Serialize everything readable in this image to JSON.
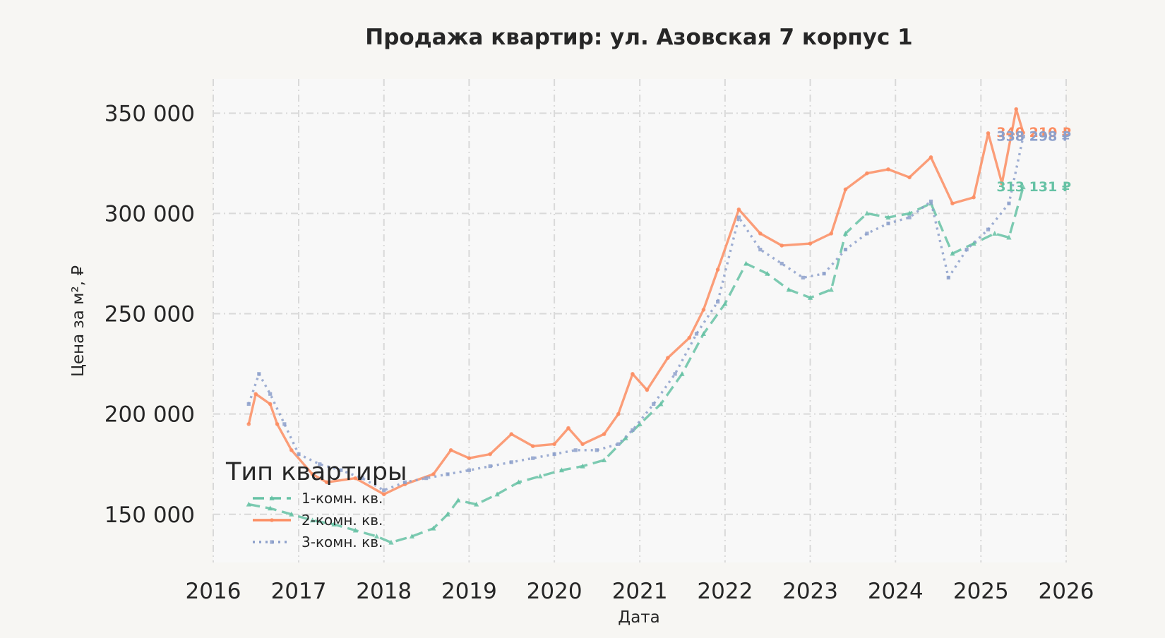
{
  "chart_data": {
    "type": "line",
    "title": "Продажа квартир: ул. Азовская 7 корпус 1",
    "xlabel": "Дата",
    "ylabel": "Цена за м², ₽",
    "x_ticks": [
      "2016",
      "2017",
      "2018",
      "2019",
      "2020",
      "2021",
      "2022",
      "2023",
      "2024",
      "2025",
      "2026"
    ],
    "y_ticks": [
      "150 000",
      "200 000",
      "250 000",
      "300 000",
      "350 000"
    ],
    "xlim": [
      "2016-01-01",
      "2026-01-01"
    ],
    "ylim": [
      126000,
      367000
    ],
    "grid": true,
    "legend": {
      "title": "Тип квартиры",
      "placement": "lower-left"
    },
    "series": [
      {
        "name": "1-комн. кв.",
        "color": "#66c2a5",
        "style": "dashed",
        "marker": "triangle",
        "end_label": "313 131 ₽",
        "points": [
          [
            "2016-06-01",
            155000
          ],
          [
            "2016-09-01",
            153000
          ],
          [
            "2016-12-01",
            150000
          ],
          [
            "2017-03-01",
            147000
          ],
          [
            "2017-06-01",
            145000
          ],
          [
            "2017-09-01",
            142000
          ],
          [
            "2017-12-01",
            139000
          ],
          [
            "2018-02-01",
            136000
          ],
          [
            "2018-05-01",
            139000
          ],
          [
            "2018-08-01",
            143000
          ],
          [
            "2018-10-01",
            150000
          ],
          [
            "2018-11-15",
            157000
          ],
          [
            "2019-02-01",
            155000
          ],
          [
            "2019-05-01",
            160000
          ],
          [
            "2019-08-01",
            166000
          ],
          [
            "2019-11-01",
            169000
          ],
          [
            "2020-02-01",
            172000
          ],
          [
            "2020-05-01",
            174000
          ],
          [
            "2020-08-01",
            177000
          ],
          [
            "2020-11-01",
            188000
          ],
          [
            "2021-01-01",
            195000
          ],
          [
            "2021-04-01",
            205000
          ],
          [
            "2021-07-01",
            220000
          ],
          [
            "2021-10-01",
            240000
          ],
          [
            "2022-01-01",
            255000
          ],
          [
            "2022-04-01",
            275000
          ],
          [
            "2022-07-01",
            270000
          ],
          [
            "2022-10-01",
            262000
          ],
          [
            "2023-01-01",
            258000
          ],
          [
            "2023-04-01",
            262000
          ],
          [
            "2023-06-01",
            290000
          ],
          [
            "2023-09-01",
            300000
          ],
          [
            "2023-12-01",
            298000
          ],
          [
            "2024-03-01",
            300000
          ],
          [
            "2024-06-01",
            305000
          ],
          [
            "2024-09-01",
            280000
          ],
          [
            "2024-12-01",
            285000
          ],
          [
            "2025-03-01",
            290000
          ],
          [
            "2025-05-01",
            288000
          ],
          [
            "2025-07-01",
            313131
          ]
        ]
      },
      {
        "name": "2-комн. кв.",
        "color": "#fc8d62",
        "style": "solid",
        "marker": "circle",
        "end_label": "340 210 ₽",
        "points": [
          [
            "2016-06-01",
            195000
          ],
          [
            "2016-07-01",
            210000
          ],
          [
            "2016-09-01",
            205000
          ],
          [
            "2016-10-01",
            195000
          ],
          [
            "2016-12-01",
            182000
          ],
          [
            "2017-03-01",
            170000
          ],
          [
            "2017-05-01",
            166000
          ],
          [
            "2017-09-01",
            168000
          ],
          [
            "2018-01-01",
            160000
          ],
          [
            "2018-04-01",
            165000
          ],
          [
            "2018-08-01",
            170000
          ],
          [
            "2018-10-15",
            182000
          ],
          [
            "2019-01-01",
            178000
          ],
          [
            "2019-04-01",
            180000
          ],
          [
            "2019-07-01",
            190000
          ],
          [
            "2019-10-01",
            184000
          ],
          [
            "2020-01-01",
            185000
          ],
          [
            "2020-03-01",
            193000
          ],
          [
            "2020-05-01",
            185000
          ],
          [
            "2020-08-01",
            190000
          ],
          [
            "2020-10-01",
            200000
          ],
          [
            "2020-12-01",
            220000
          ],
          [
            "2021-02-01",
            212000
          ],
          [
            "2021-05-01",
            228000
          ],
          [
            "2021-08-01",
            238000
          ],
          [
            "2021-10-01",
            252000
          ],
          [
            "2021-12-01",
            272000
          ],
          [
            "2022-03-01",
            302000
          ],
          [
            "2022-06-01",
            290000
          ],
          [
            "2022-09-01",
            284000
          ],
          [
            "2023-01-01",
            285000
          ],
          [
            "2023-04-01",
            290000
          ],
          [
            "2023-06-01",
            312000
          ],
          [
            "2023-09-01",
            320000
          ],
          [
            "2023-12-01",
            322000
          ],
          [
            "2024-03-01",
            318000
          ],
          [
            "2024-06-01",
            328000
          ],
          [
            "2024-09-01",
            305000
          ],
          [
            "2024-12-01",
            308000
          ],
          [
            "2025-02-01",
            340000
          ],
          [
            "2025-04-01",
            315000
          ],
          [
            "2025-06-01",
            352000
          ],
          [
            "2025-07-01",
            340210
          ]
        ]
      },
      {
        "name": "3-комн. кв.",
        "color": "#8da0cb",
        "style": "dotted",
        "marker": "square",
        "end_label": "338 298 ₽",
        "points": [
          [
            "2016-06-01",
            205000
          ],
          [
            "2016-07-15",
            220000
          ],
          [
            "2016-09-01",
            210000
          ],
          [
            "2016-11-01",
            195000
          ],
          [
            "2017-01-01",
            180000
          ],
          [
            "2017-04-01",
            175000
          ],
          [
            "2017-07-01",
            172000
          ],
          [
            "2017-10-01",
            168000
          ],
          [
            "2018-01-01",
            162000
          ],
          [
            "2018-04-01",
            166000
          ],
          [
            "2018-07-01",
            168000
          ],
          [
            "2018-10-01",
            170000
          ],
          [
            "2019-01-01",
            172000
          ],
          [
            "2019-04-01",
            174000
          ],
          [
            "2019-07-01",
            176000
          ],
          [
            "2019-10-01",
            178000
          ],
          [
            "2020-01-01",
            180000
          ],
          [
            "2020-04-01",
            182000
          ],
          [
            "2020-07-01",
            182000
          ],
          [
            "2020-10-01",
            185000
          ],
          [
            "2020-12-01",
            192000
          ],
          [
            "2021-03-01",
            205000
          ],
          [
            "2021-06-01",
            220000
          ],
          [
            "2021-09-01",
            240000
          ],
          [
            "2021-12-01",
            256000
          ],
          [
            "2022-03-01",
            298000
          ],
          [
            "2022-06-01",
            282000
          ],
          [
            "2022-09-01",
            275000
          ],
          [
            "2022-12-01",
            268000
          ],
          [
            "2023-03-01",
            270000
          ],
          [
            "2023-06-01",
            282000
          ],
          [
            "2023-09-01",
            290000
          ],
          [
            "2023-12-01",
            295000
          ],
          [
            "2024-03-01",
            298000
          ],
          [
            "2024-06-01",
            306000
          ],
          [
            "2024-08-15",
            268000
          ],
          [
            "2024-11-01",
            282000
          ],
          [
            "2025-02-01",
            292000
          ],
          [
            "2025-05-01",
            305000
          ],
          [
            "2025-07-01",
            338298
          ]
        ]
      }
    ]
  }
}
